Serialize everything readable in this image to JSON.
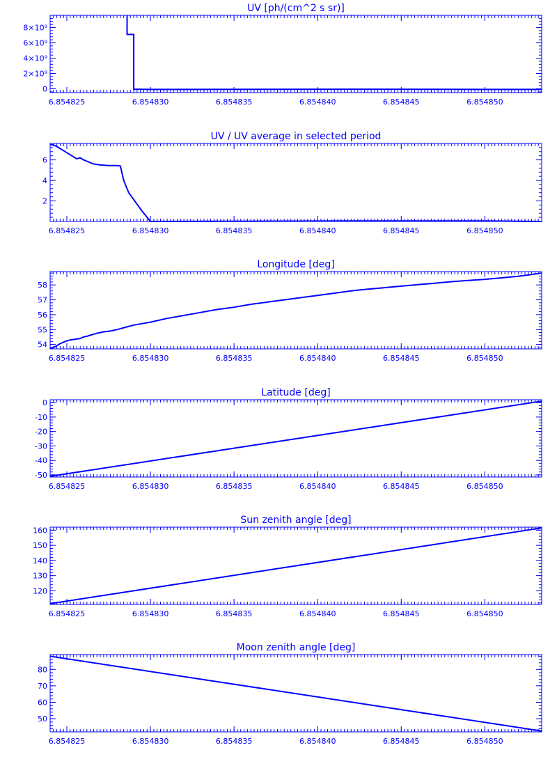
{
  "x_ticks": [
    "6.854825",
    "6.854830",
    "6.854835",
    "6.854840",
    "6.854845",
    "6.854850"
  ],
  "x_tick_values": [
    6.854825,
    6.85483,
    6.854835,
    6.85484,
    6.854845,
    6.85485
  ],
  "x_range": [
    6.854824,
    6.8548534
  ],
  "color": "#0000ff",
  "chart_data": [
    {
      "type": "line",
      "title": "UV [ph/(cm^2 s sr)]",
      "xlim": [
        6.854824,
        6.8548534
      ],
      "ylim": [
        -500000000,
        9600000000
      ],
      "yticks": [
        0,
        2000000000,
        4000000000,
        6000000000,
        8000000000
      ],
      "ytick_labels": [
        "0",
        "2×10⁹",
        "4×10⁹",
        "6×10⁹",
        "8×10⁹"
      ],
      "x": [
        6.8548286,
        6.8548286,
        6.854829,
        6.854829,
        6.8548292,
        6.85483,
        6.854842,
        6.85485,
        6.8548534
      ],
      "y": [
        9600000000,
        7100000000,
        7100000000,
        -80000000,
        -50000000,
        -80000000,
        -50000000,
        -80000000,
        -80000000
      ]
    },
    {
      "type": "line",
      "title": "UV / UV average in selected period",
      "xlim": [
        6.854824,
        6.8548534
      ],
      "ylim": [
        0,
        7.6
      ],
      "yticks": [
        2,
        4,
        6
      ],
      "ytick_labels": [
        "2",
        "4",
        "6"
      ],
      "x": [
        6.854824,
        6.8548242,
        6.8548244,
        6.8548246,
        6.8548248,
        6.854825,
        6.8548252,
        6.8548254,
        6.8548256,
        6.8548258,
        6.854826,
        6.8548263,
        6.8548266,
        6.854827,
        6.8548275,
        6.854828,
        6.8548282,
        6.8548284,
        6.8548287,
        6.8548295,
        6.85483,
        6.854842,
        6.85485,
        6.8548534
      ],
      "y": [
        7.5,
        7.45,
        7.3,
        7.1,
        6.9,
        6.7,
        6.5,
        6.3,
        6.1,
        6.2,
        6.0,
        5.8,
        5.6,
        5.5,
        5.45,
        5.45,
        5.4,
        4.0,
        2.8,
        1.0,
        0.0,
        0.05,
        0.05,
        0.0
      ]
    },
    {
      "type": "line",
      "title": "Longitude [deg]",
      "xlim": [
        6.854824,
        6.8548534
      ],
      "ylim": [
        53.7,
        58.9
      ],
      "yticks": [
        54,
        55,
        56,
        57,
        58
      ],
      "ytick_labels": [
        "54",
        "55",
        "56",
        "57",
        "58"
      ],
      "x": [
        6.854824,
        6.8548243,
        6.8548246,
        6.8548249,
        6.8548252,
        6.8548255,
        6.8548258,
        6.854826,
        6.8548262,
        6.8548265,
        6.8548268,
        6.8548272,
        6.8548276,
        6.854828,
        6.8548285,
        6.854829,
        6.8548295,
        6.85483,
        6.854831,
        6.854832,
        6.854833,
        6.854834,
        6.854835,
        6.854836,
        6.854837,
        6.854838,
        6.854839,
        6.85484,
        6.854841,
        6.854842,
        6.854843,
        6.854844,
        6.854845,
        6.854846,
        6.854847,
        6.854848,
        6.854849,
        6.85485,
        6.854851,
        6.854852,
        6.8548534
      ],
      "y": [
        53.7,
        53.85,
        54.05,
        54.2,
        54.3,
        54.35,
        54.4,
        54.5,
        54.55,
        54.65,
        54.75,
        54.85,
        54.9,
        55.0,
        55.15,
        55.3,
        55.4,
        55.5,
        55.75,
        55.95,
        56.15,
        56.35,
        56.5,
        56.7,
        56.85,
        57.0,
        57.15,
        57.3,
        57.45,
        57.6,
        57.72,
        57.82,
        57.92,
        58.02,
        58.12,
        58.22,
        58.3,
        58.38,
        58.48,
        58.58,
        58.8
      ]
    },
    {
      "type": "line",
      "title": "Latitude [deg]",
      "xlim": [
        6.854824,
        6.8548534
      ],
      "ylim": [
        -51.5,
        2
      ],
      "yticks": [
        -50,
        -40,
        -30,
        -20,
        -10,
        0
      ],
      "ytick_labels": [
        "-50",
        "-40",
        "-30",
        "-20",
        "-10",
        "0"
      ],
      "x": [
        6.854824,
        6.8548534
      ],
      "y": [
        -51.0,
        1.0
      ]
    },
    {
      "type": "line",
      "title": "Sun zenith angle [deg]",
      "xlim": [
        6.854824,
        6.8548534
      ],
      "ylim": [
        111,
        162
      ],
      "yticks": [
        120,
        130,
        140,
        150,
        160
      ],
      "ytick_labels": [
        "120",
        "130",
        "140",
        "150",
        "160"
      ],
      "x": [
        6.854824,
        6.8548534
      ],
      "y": [
        111.5,
        161.5
      ]
    },
    {
      "type": "line",
      "title": "Moon zenith angle [deg]",
      "xlim": [
        6.854824,
        6.8548534
      ],
      "ylim": [
        42,
        89
      ],
      "yticks": [
        50,
        60,
        70,
        80
      ],
      "ytick_labels": [
        "50",
        "60",
        "70",
        "80"
      ],
      "x": [
        6.854824,
        6.8548534
      ],
      "y": [
        88.0,
        42.5
      ]
    }
  ]
}
